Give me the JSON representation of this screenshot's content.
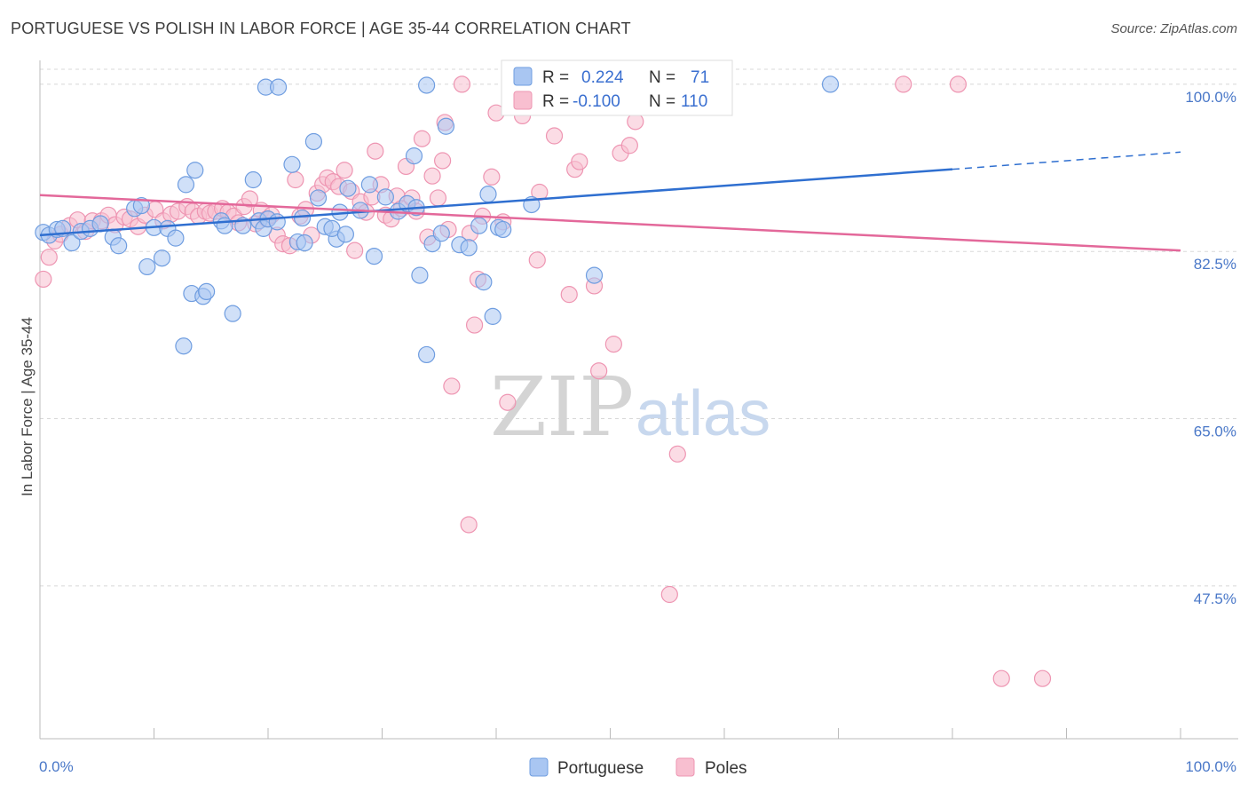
{
  "title": "PORTUGUESE VS POLISH IN LABOR FORCE | AGE 35-44 CORRELATION CHART",
  "source": "Source: ZipAtlas.com",
  "watermark": {
    "zip": "ZIP",
    "atlas": "atlas"
  },
  "colors": {
    "blue_fill": "#a9c6f2",
    "blue_stroke": "#6f9de0",
    "blue_line": "#2f6fd0",
    "pink_fill": "#f8bfd0",
    "pink_stroke": "#ee95b2",
    "pink_line": "#e3689a",
    "tick_label": "#4a78c8",
    "grid": "#d8d8d8"
  },
  "legend": {
    "rows": [
      {
        "r_label": "R =",
        "r_value": "0.224",
        "n_label": "N =",
        "n_value": "71"
      },
      {
        "r_label": "R =",
        "r_value": "-0.100",
        "n_label": "N =",
        "n_value": "110"
      }
    ]
  },
  "chart_data": {
    "type": "scatter",
    "title": "PORTUGUESE VS POLISH IN LABOR FORCE | AGE 35-44 CORRELATION CHART",
    "xlabel": "",
    "ylabel": "In Labor Force | Age 35-44",
    "xlim": [
      0,
      100
    ],
    "ylim": [
      31.5,
      102.5
    ],
    "x_tick_labels": [
      "0.0%",
      "100.0%"
    ],
    "y_ticks": [
      47.5,
      65.0,
      82.5,
      100.0
    ],
    "y_tick_labels": [
      "47.5%",
      "65.0%",
      "82.5%",
      "100.0%"
    ],
    "grid": "horizontal dashed",
    "legend_placement": "top-center",
    "series": [
      {
        "name": "Portuguese",
        "color": "#a9c6f2",
        "trend": {
          "x": [
            0,
            80
          ],
          "y": [
            84.2,
            91.1
          ],
          "dashed_to": [
            100,
            92.9
          ]
        },
        "points": [
          [
            0.3,
            84.5
          ],
          [
            0.8,
            84.2
          ],
          [
            1.5,
            84.8
          ],
          [
            2.0,
            84.9
          ],
          [
            2.8,
            83.4
          ],
          [
            3.6,
            84.6
          ],
          [
            4.4,
            84.9
          ],
          [
            5.3,
            85.4
          ],
          [
            6.4,
            84.0
          ],
          [
            6.9,
            83.1
          ],
          [
            8.3,
            87.0
          ],
          [
            8.9,
            87.3
          ],
          [
            9.4,
            80.9
          ],
          [
            10.0,
            85.0
          ],
          [
            10.7,
            81.8
          ],
          [
            11.2,
            84.9
          ],
          [
            11.9,
            83.9
          ],
          [
            12.8,
            89.5
          ],
          [
            13.6,
            91.0
          ],
          [
            13.3,
            78.1
          ],
          [
            14.3,
            77.8
          ],
          [
            14.6,
            78.3
          ],
          [
            15.9,
            85.7
          ],
          [
            16.2,
            85.2
          ],
          [
            16.9,
            76.0
          ],
          [
            12.6,
            72.6
          ],
          [
            17.8,
            85.2
          ],
          [
            18.7,
            90.0
          ],
          [
            19.2,
            85.7
          ],
          [
            19.6,
            84.9
          ],
          [
            20.0,
            85.9
          ],
          [
            20.8,
            85.6
          ],
          [
            19.8,
            99.7
          ],
          [
            20.9,
            99.7
          ],
          [
            22.1,
            91.6
          ],
          [
            22.6,
            83.5
          ],
          [
            23.2,
            83.4
          ],
          [
            24.0,
            94.0
          ],
          [
            24.4,
            88.1
          ],
          [
            23.0,
            86.0
          ],
          [
            26.0,
            83.8
          ],
          [
            25.0,
            85.1
          ],
          [
            25.6,
            84.9
          ],
          [
            26.3,
            86.6
          ],
          [
            27.0,
            89.1
          ],
          [
            26.8,
            84.3
          ],
          [
            28.1,
            86.8
          ],
          [
            28.9,
            89.5
          ],
          [
            29.3,
            82.0
          ],
          [
            30.3,
            88.2
          ],
          [
            31.4,
            86.7
          ],
          [
            32.2,
            87.5
          ],
          [
            33.0,
            87.1
          ],
          [
            32.8,
            92.5
          ],
          [
            33.3,
            80.0
          ],
          [
            33.9,
            71.7
          ],
          [
            34.4,
            83.3
          ],
          [
            35.2,
            84.4
          ],
          [
            35.6,
            95.6
          ],
          [
            36.8,
            83.2
          ],
          [
            37.6,
            82.9
          ],
          [
            38.5,
            85.2
          ],
          [
            38.9,
            79.3
          ],
          [
            39.3,
            88.5
          ],
          [
            39.7,
            75.7
          ],
          [
            40.2,
            85.0
          ],
          [
            40.6,
            84.8
          ],
          [
            43.1,
            87.4
          ],
          [
            48.6,
            80.0
          ],
          [
            69.3,
            100.0
          ],
          [
            33.9,
            99.9
          ]
        ]
      },
      {
        "name": "Poles",
        "color": "#f8bfd0",
        "trend": {
          "x": [
            0,
            100
          ],
          "y": [
            88.4,
            82.6
          ]
        },
        "points": [
          [
            0.3,
            79.6
          ],
          [
            0.8,
            81.9
          ],
          [
            1.3,
            83.6
          ],
          [
            1.8,
            84.3
          ],
          [
            2.6,
            85.2
          ],
          [
            3.3,
            85.8
          ],
          [
            4.0,
            84.6
          ],
          [
            4.6,
            85.7
          ],
          [
            5.4,
            85.7
          ],
          [
            6.0,
            86.3
          ],
          [
            6.6,
            85.3
          ],
          [
            7.4,
            86.1
          ],
          [
            7.9,
            85.9
          ],
          [
            8.6,
            85.1
          ],
          [
            9.2,
            86.3
          ],
          [
            10.1,
            86.9
          ],
          [
            10.8,
            85.7
          ],
          [
            11.5,
            86.4
          ],
          [
            12.1,
            86.7
          ],
          [
            12.9,
            87.2
          ],
          [
            13.4,
            86.7
          ],
          [
            13.9,
            86.2
          ],
          [
            14.5,
            86.7
          ],
          [
            14.9,
            86.5
          ],
          [
            15.4,
            86.7
          ],
          [
            16.0,
            87.0
          ],
          [
            16.5,
            86.6
          ],
          [
            17.0,
            86.2
          ],
          [
            17.4,
            85.5
          ],
          [
            17.9,
            87.2
          ],
          [
            18.4,
            88.0
          ],
          [
            18.9,
            85.4
          ],
          [
            19.4,
            86.8
          ],
          [
            19.9,
            85.9
          ],
          [
            20.3,
            86.3
          ],
          [
            20.8,
            84.2
          ],
          [
            21.3,
            83.3
          ],
          [
            21.9,
            83.1
          ],
          [
            22.4,
            90.0
          ],
          [
            22.8,
            86.2
          ],
          [
            23.3,
            86.9
          ],
          [
            23.8,
            84.2
          ],
          [
            24.3,
            88.6
          ],
          [
            24.8,
            89.5
          ],
          [
            25.2,
            90.2
          ],
          [
            25.7,
            89.8
          ],
          [
            26.2,
            89.3
          ],
          [
            26.7,
            91.0
          ],
          [
            27.3,
            88.8
          ],
          [
            27.6,
            82.6
          ],
          [
            28.1,
            87.7
          ],
          [
            28.6,
            86.6
          ],
          [
            29.1,
            88.2
          ],
          [
            29.4,
            93.0
          ],
          [
            29.9,
            89.5
          ],
          [
            30.3,
            86.3
          ],
          [
            30.8,
            85.9
          ],
          [
            31.3,
            88.3
          ],
          [
            31.7,
            87.0
          ],
          [
            32.1,
            91.4
          ],
          [
            32.6,
            88.1
          ],
          [
            33.0,
            86.7
          ],
          [
            33.5,
            94.3
          ],
          [
            34.0,
            84.0
          ],
          [
            34.4,
            90.4
          ],
          [
            34.9,
            88.1
          ],
          [
            35.3,
            92.0
          ],
          [
            35.8,
            84.8
          ],
          [
            36.1,
            68.4
          ],
          [
            37.0,
            100.0
          ],
          [
            37.6,
            53.9
          ],
          [
            37.7,
            84.4
          ],
          [
            38.1,
            74.8
          ],
          [
            38.4,
            79.6
          ],
          [
            38.8,
            86.2
          ],
          [
            39.6,
            90.3
          ],
          [
            40.0,
            97.0
          ],
          [
            40.6,
            85.6
          ],
          [
            41.0,
            66.7
          ],
          [
            41.6,
            100.0
          ],
          [
            42.3,
            96.7
          ],
          [
            43.3,
            100.0
          ],
          [
            43.8,
            88.7
          ],
          [
            43.6,
            81.6
          ],
          [
            44.6,
            100.0
          ],
          [
            45.1,
            94.6
          ],
          [
            46.4,
            78.0
          ],
          [
            46.9,
            91.1
          ],
          [
            47.3,
            91.9
          ],
          [
            48.1,
            100.0
          ],
          [
            48.6,
            78.9
          ],
          [
            49.0,
            70.0
          ],
          [
            49.9,
            98.0
          ],
          [
            50.3,
            72.8
          ],
          [
            50.9,
            92.8
          ],
          [
            51.7,
            93.6
          ],
          [
            52.2,
            96.1
          ],
          [
            52.9,
            100.0
          ],
          [
            53.4,
            100.0
          ],
          [
            53.8,
            100.0
          ],
          [
            55.3,
            100.0
          ],
          [
            55.9,
            61.3
          ],
          [
            55.2,
            46.6
          ],
          [
            57.1,
            100.0
          ],
          [
            59.5,
            100.0
          ],
          [
            75.7,
            100.0
          ],
          [
            80.5,
            100.0
          ],
          [
            84.3,
            37.8
          ],
          [
            87.9,
            37.8
          ],
          [
            35.5,
            96.0
          ]
        ]
      }
    ]
  },
  "bottom_legend": [
    {
      "label": "Portuguese",
      "color": "#a9c6f2"
    },
    {
      "label": "Poles",
      "color": "#f8bfd0"
    }
  ]
}
